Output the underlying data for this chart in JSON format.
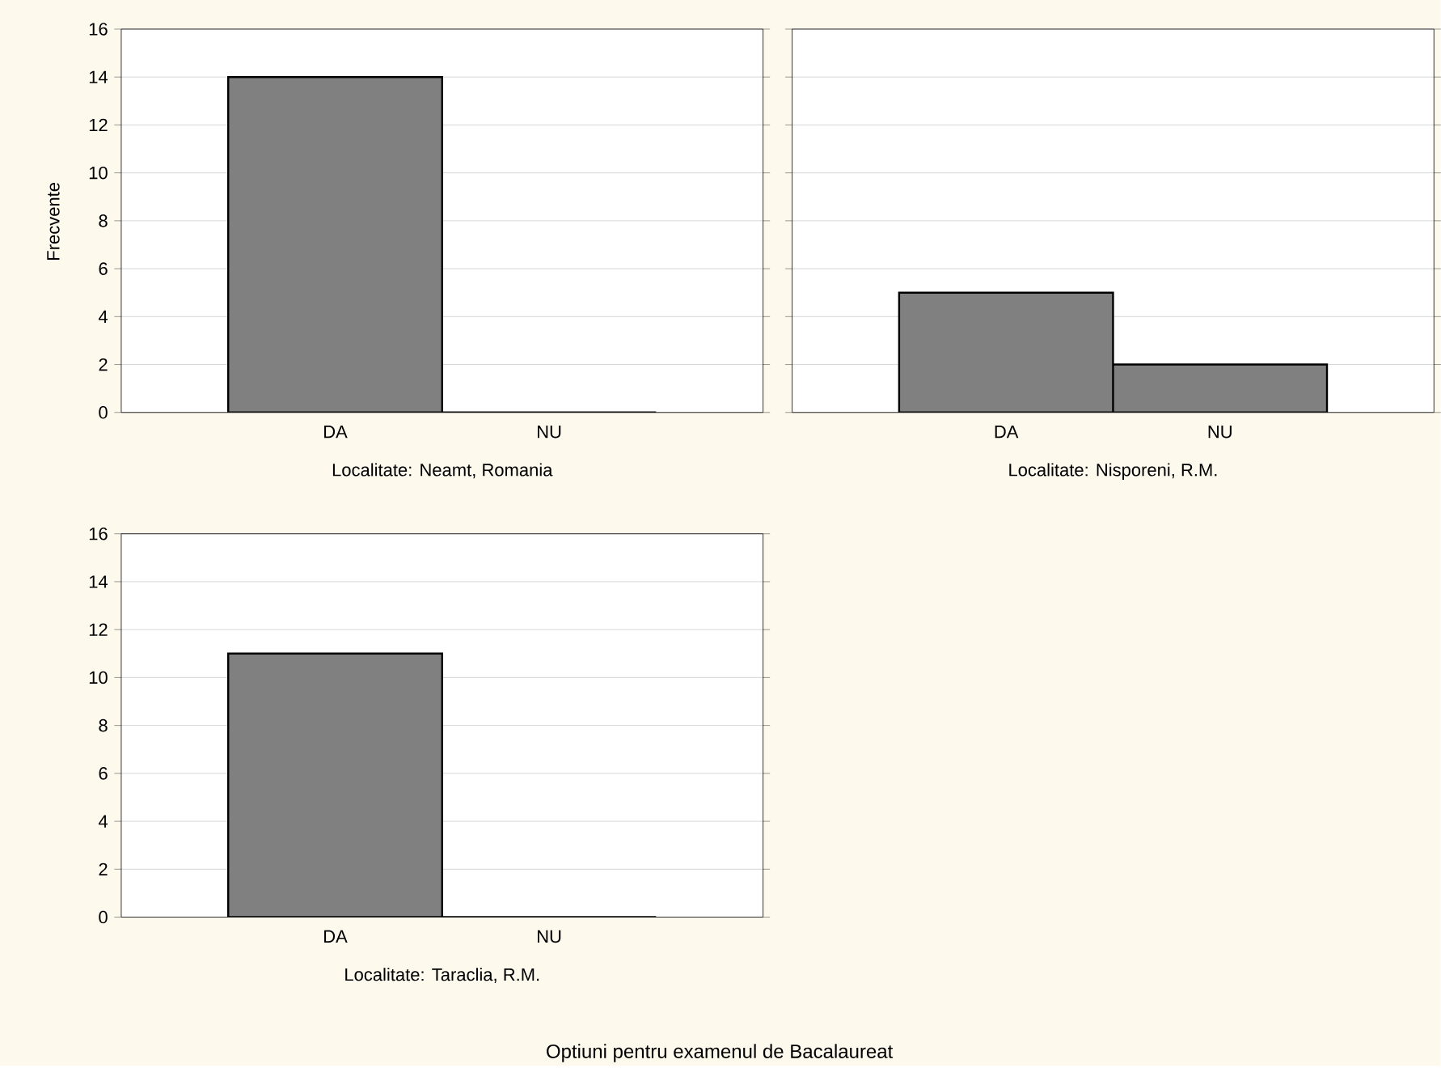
{
  "chart_data": [
    {
      "type": "bar",
      "categories": [
        "DA",
        "NU"
      ],
      "values": [
        14,
        0
      ],
      "color": "#808080",
      "ylim": [
        0,
        16
      ],
      "yticks": [
        0,
        2,
        4,
        6,
        8,
        10,
        12,
        14,
        16
      ],
      "grid": "y",
      "xlabel": "Localitate: Neamt, Romania",
      "ylabel": "Frecvente",
      "annotations": [
        "Optiuni pentru examenul de Bacalaureat"
      ]
    },
    {
      "type": "bar",
      "categories": [
        "DA",
        "NU"
      ],
      "values": [
        5,
        2
      ],
      "color": "#808080",
      "ylim": [
        0,
        16
      ],
      "yticks": [
        0,
        2,
        4,
        6,
        8,
        10,
        12,
        14,
        16
      ],
      "grid": "y",
      "tick_labels": "x",
      "xlabel": "Localitate: Nisporeni, R.M."
    },
    {
      "type": "bar",
      "categories": [
        "DA",
        "NU"
      ],
      "values": [
        11,
        0
      ],
      "color": "#808080",
      "ylim": [
        0,
        16
      ],
      "yticks": [
        0,
        2,
        4,
        6,
        8,
        10,
        12,
        14,
        16
      ],
      "grid": "y",
      "xlabel": "Localitate: Taraclia, R.M."
    }
  ]
}
